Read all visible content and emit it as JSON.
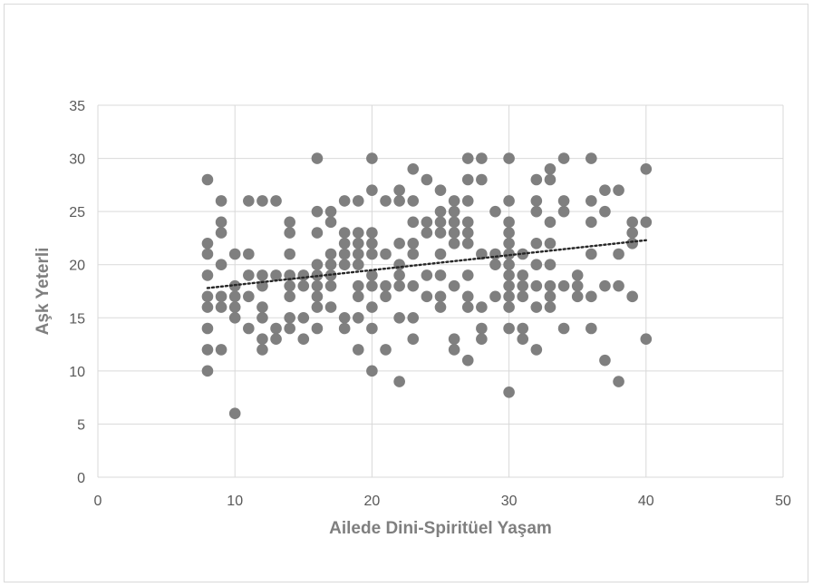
{
  "chart_data": {
    "type": "scatter",
    "xlabel": "Ailede Dini-Spiritüel Yaşam",
    "ylabel": "Aşk Yeterli",
    "xlim": [
      0,
      50
    ],
    "ylim": [
      0,
      35
    ],
    "xticks": [
      0,
      10,
      20,
      30,
      40,
      50
    ],
    "yticks": [
      0,
      5,
      10,
      15,
      20,
      25,
      30,
      35
    ],
    "grid": true,
    "legend": "none",
    "colors": {
      "points": "#7f7f7f",
      "trendline": "#262626",
      "grid": "#d9d9d9"
    },
    "trendline": {
      "style": "dotted",
      "x": [
        8,
        40
      ],
      "y": [
        17.8,
        22.3
      ]
    },
    "points": [
      [
        8,
        28
      ],
      [
        8,
        22
      ],
      [
        8,
        21
      ],
      [
        8,
        19
      ],
      [
        8,
        17
      ],
      [
        8,
        16
      ],
      [
        8,
        14
      ],
      [
        8,
        12
      ],
      [
        8,
        10
      ],
      [
        9,
        26
      ],
      [
        9,
        24
      ],
      [
        9,
        23
      ],
      [
        9,
        20
      ],
      [
        9,
        17
      ],
      [
        9,
        16
      ],
      [
        9,
        12
      ],
      [
        10,
        21
      ],
      [
        10,
        18
      ],
      [
        10,
        17
      ],
      [
        10,
        16
      ],
      [
        10,
        15
      ],
      [
        10,
        6
      ],
      [
        11,
        26
      ],
      [
        11,
        21
      ],
      [
        11,
        19
      ],
      [
        11,
        17
      ],
      [
        11,
        14
      ],
      [
        12,
        26
      ],
      [
        12,
        19
      ],
      [
        12,
        18
      ],
      [
        12,
        16
      ],
      [
        12,
        15
      ],
      [
        12,
        13
      ],
      [
        12,
        12
      ],
      [
        13,
        26
      ],
      [
        13,
        19
      ],
      [
        13,
        14
      ],
      [
        13,
        13
      ],
      [
        14,
        24
      ],
      [
        14,
        23
      ],
      [
        14,
        21
      ],
      [
        14,
        19
      ],
      [
        14,
        18
      ],
      [
        14,
        17
      ],
      [
        14,
        15
      ],
      [
        14,
        14
      ],
      [
        15,
        19
      ],
      [
        15,
        18
      ],
      [
        15,
        15
      ],
      [
        15,
        13
      ],
      [
        16,
        30
      ],
      [
        16,
        25
      ],
      [
        16,
        23
      ],
      [
        16,
        20
      ],
      [
        16,
        19
      ],
      [
        16,
        18
      ],
      [
        16,
        17
      ],
      [
        16,
        16
      ],
      [
        16,
        14
      ],
      [
        17,
        25
      ],
      [
        17,
        24
      ],
      [
        17,
        21
      ],
      [
        17,
        20
      ],
      [
        17,
        19
      ],
      [
        17,
        18
      ],
      [
        17,
        16
      ],
      [
        18,
        26
      ],
      [
        18,
        23
      ],
      [
        18,
        22
      ],
      [
        18,
        21
      ],
      [
        18,
        20
      ],
      [
        18,
        15
      ],
      [
        18,
        14
      ],
      [
        19,
        26
      ],
      [
        19,
        23
      ],
      [
        19,
        22
      ],
      [
        19,
        21
      ],
      [
        19,
        20
      ],
      [
        19,
        18
      ],
      [
        19,
        17
      ],
      [
        19,
        15
      ],
      [
        19,
        12
      ],
      [
        20,
        30
      ],
      [
        20,
        27
      ],
      [
        20,
        23
      ],
      [
        20,
        22
      ],
      [
        20,
        21
      ],
      [
        20,
        19
      ],
      [
        20,
        18
      ],
      [
        20,
        16
      ],
      [
        20,
        14
      ],
      [
        20,
        10
      ],
      [
        21,
        26
      ],
      [
        21,
        21
      ],
      [
        21,
        18
      ],
      [
        21,
        17
      ],
      [
        21,
        12
      ],
      [
        22,
        27
      ],
      [
        22,
        26
      ],
      [
        22,
        22
      ],
      [
        22,
        20
      ],
      [
        22,
        19
      ],
      [
        22,
        18
      ],
      [
        22,
        15
      ],
      [
        22,
        9
      ],
      [
        23,
        29
      ],
      [
        23,
        26
      ],
      [
        23,
        24
      ],
      [
        23,
        22
      ],
      [
        23,
        21
      ],
      [
        23,
        18
      ],
      [
        23,
        15
      ],
      [
        23,
        13
      ],
      [
        24,
        28
      ],
      [
        24,
        24
      ],
      [
        24,
        23
      ],
      [
        24,
        19
      ],
      [
        24,
        17
      ],
      [
        25,
        27
      ],
      [
        25,
        25
      ],
      [
        25,
        24
      ],
      [
        25,
        23
      ],
      [
        25,
        21
      ],
      [
        25,
        19
      ],
      [
        25,
        17
      ],
      [
        25,
        16
      ],
      [
        26,
        26
      ],
      [
        26,
        25
      ],
      [
        26,
        24
      ],
      [
        26,
        23
      ],
      [
        26,
        22
      ],
      [
        26,
        18
      ],
      [
        26,
        13
      ],
      [
        26,
        12
      ],
      [
        27,
        30
      ],
      [
        27,
        28
      ],
      [
        27,
        26
      ],
      [
        27,
        24
      ],
      [
        27,
        23
      ],
      [
        27,
        22
      ],
      [
        27,
        19
      ],
      [
        27,
        17
      ],
      [
        27,
        16
      ],
      [
        27,
        11
      ],
      [
        28,
        30
      ],
      [
        28,
        28
      ],
      [
        28,
        21
      ],
      [
        28,
        16
      ],
      [
        28,
        14
      ],
      [
        28,
        13
      ],
      [
        29,
        25
      ],
      [
        29,
        21
      ],
      [
        29,
        20
      ],
      [
        29,
        17
      ],
      [
        30,
        30
      ],
      [
        30,
        26
      ],
      [
        30,
        24
      ],
      [
        30,
        23
      ],
      [
        30,
        22
      ],
      [
        30,
        21
      ],
      [
        30,
        20
      ],
      [
        30,
        19
      ],
      [
        30,
        18
      ],
      [
        30,
        17
      ],
      [
        30,
        16
      ],
      [
        30,
        14
      ],
      [
        30,
        8
      ],
      [
        31,
        21
      ],
      [
        31,
        19
      ],
      [
        31,
        18
      ],
      [
        31,
        17
      ],
      [
        31,
        14
      ],
      [
        31,
        13
      ],
      [
        32,
        28
      ],
      [
        32,
        26
      ],
      [
        32,
        25
      ],
      [
        32,
        22
      ],
      [
        32,
        20
      ],
      [
        32,
        18
      ],
      [
        32,
        16
      ],
      [
        32,
        12
      ],
      [
        33,
        29
      ],
      [
        33,
        28
      ],
      [
        33,
        24
      ],
      [
        33,
        22
      ],
      [
        33,
        20
      ],
      [
        33,
        18
      ],
      [
        33,
        17
      ],
      [
        33,
        16
      ],
      [
        34,
        30
      ],
      [
        34,
        26
      ],
      [
        34,
        25
      ],
      [
        34,
        18
      ],
      [
        34,
        14
      ],
      [
        35,
        19
      ],
      [
        35,
        18
      ],
      [
        35,
        17
      ],
      [
        36,
        30
      ],
      [
        36,
        26
      ],
      [
        36,
        24
      ],
      [
        36,
        21
      ],
      [
        36,
        17
      ],
      [
        36,
        14
      ],
      [
        37,
        27
      ],
      [
        37,
        25
      ],
      [
        37,
        18
      ],
      [
        37,
        11
      ],
      [
        38,
        27
      ],
      [
        38,
        21
      ],
      [
        38,
        18
      ],
      [
        38,
        9
      ],
      [
        39,
        24
      ],
      [
        39,
        23
      ],
      [
        39,
        22
      ],
      [
        39,
        17
      ],
      [
        40,
        29
      ],
      [
        40,
        24
      ],
      [
        40,
        13
      ]
    ]
  }
}
